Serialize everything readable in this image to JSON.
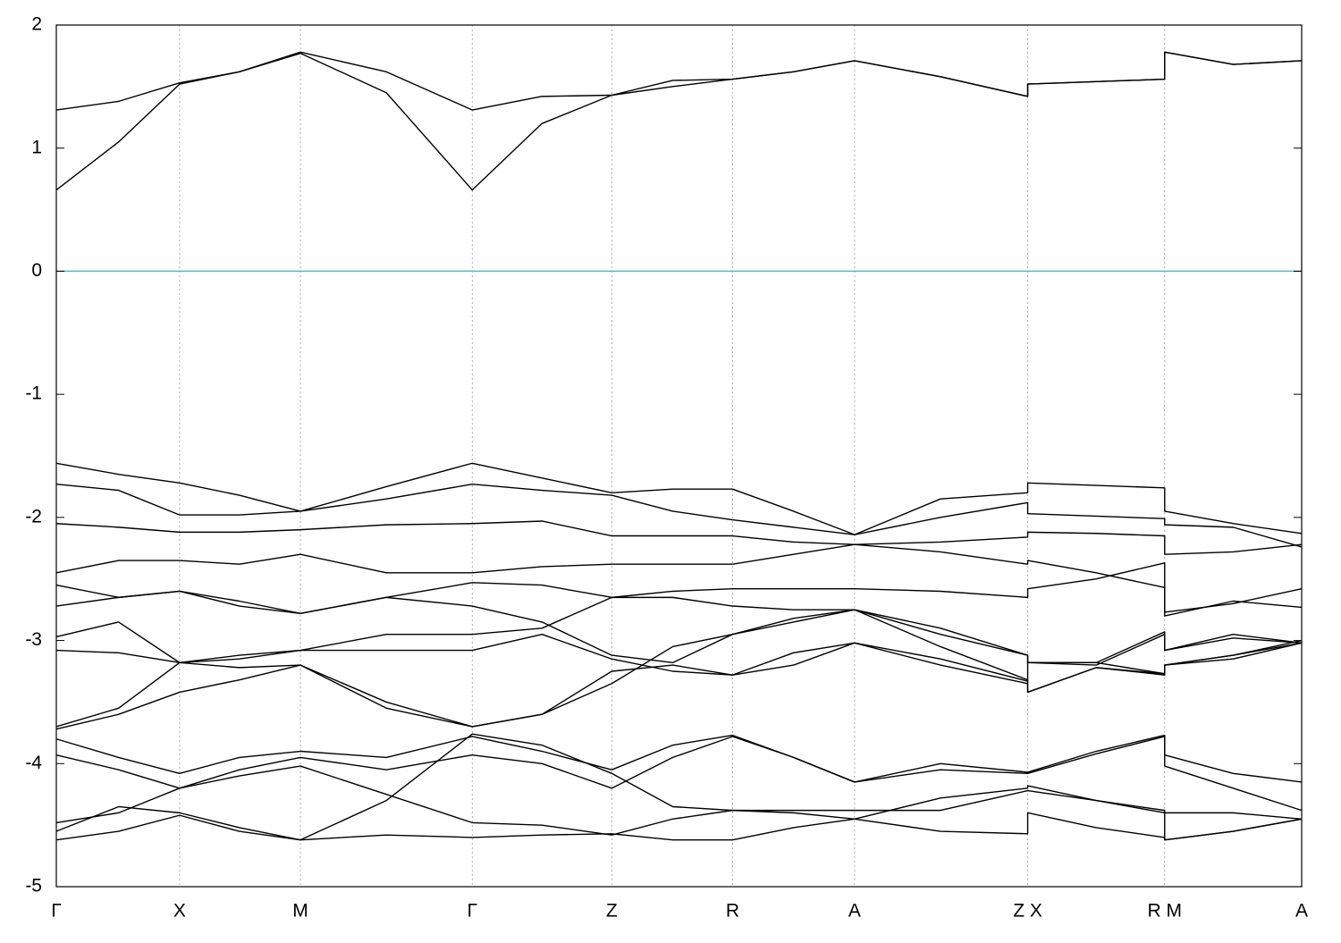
{
  "chart_data": {
    "type": "line",
    "color": "#000000",
    "x": [
      0,
      0.05,
      0.099,
      0.147,
      0.196,
      0.265,
      0.334,
      0.39,
      0.446,
      0.495,
      0.543,
      0.592,
      0.641,
      0.71,
      0.78,
      0.78,
      0.835,
      0.89,
      0.89,
      0.945,
      1.0
    ],
    "xlim": [
      0,
      1.0
    ],
    "xticks": [
      {
        "value": 0,
        "label": "Γ"
      },
      {
        "value": 0.099,
        "label": "X"
      },
      {
        "value": 0.196,
        "label": "M"
      },
      {
        "value": 0.334,
        "label": "Γ"
      },
      {
        "value": 0.446,
        "label": "Z"
      },
      {
        "value": 0.543,
        "label": "R"
      },
      {
        "value": 0.641,
        "label": "A"
      },
      {
        "value": 0.78,
        "label": "Z X"
      },
      {
        "value": 0.89,
        "label": "R M"
      },
      {
        "value": 1.0,
        "label": "A"
      }
    ],
    "ylim": [
      -5,
      2
    ],
    "yticks": [
      -5,
      -4,
      -3,
      -2,
      -1,
      0,
      1,
      2
    ],
    "xgrid": true,
    "reference_line": {
      "value": 0,
      "color": "#5ab4c8"
    },
    "series": [
      {
        "values": [
          0.66,
          1.05,
          1.52,
          1.62,
          1.77,
          1.45,
          0.66,
          1.2,
          1.43,
          1.5,
          1.56,
          1.62,
          1.71,
          1.58,
          1.42,
          1.52,
          1.54,
          1.56,
          1.78,
          1.68,
          1.71
        ]
      },
      {
        "values": [
          1.31,
          1.38,
          1.53,
          1.62,
          1.78,
          1.62,
          1.31,
          1.42,
          1.43,
          1.55,
          1.56,
          1.62,
          1.71,
          1.58,
          1.42,
          1.52,
          1.54,
          1.56,
          1.78,
          1.68,
          1.71
        ]
      },
      {
        "values": [
          -1.56,
          -1.65,
          -1.72,
          -1.82,
          -1.95,
          -1.75,
          -1.56,
          -1.68,
          -1.8,
          -1.77,
          -1.77,
          -1.95,
          -2.14,
          -1.85,
          -1.8,
          -1.72,
          -1.74,
          -1.76,
          -1.95,
          -2.05,
          -2.13
        ]
      },
      {
        "values": [
          -1.73,
          -1.78,
          -1.98,
          -1.98,
          -1.95,
          -1.85,
          -1.73,
          -1.78,
          -1.82,
          -1.95,
          -2.02,
          -2.08,
          -2.14,
          -2.0,
          -1.88,
          -1.97,
          -1.99,
          -2.01,
          -2.06,
          -2.08,
          -2.24
        ]
      },
      {
        "values": [
          -2.05,
          -2.08,
          -2.12,
          -2.12,
          -2.1,
          -2.06,
          -2.05,
          -2.03,
          -2.15,
          -2.15,
          -2.15,
          -2.2,
          -2.22,
          -2.2,
          -2.16,
          -2.12,
          -2.13,
          -2.15,
          -2.3,
          -2.28,
          -2.22
        ]
      },
      {
        "values": [
          -2.45,
          -2.35,
          -2.35,
          -2.38,
          -2.3,
          -2.45,
          -2.45,
          -2.4,
          -2.38,
          -2.38,
          -2.38,
          -2.3,
          -2.22,
          -2.28,
          -2.38,
          -2.35,
          -2.45,
          -2.57,
          -2.77,
          -2.7,
          -2.58
        ]
      },
      {
        "values": [
          -2.55,
          -2.65,
          -2.6,
          -2.68,
          -2.78,
          -2.65,
          -2.53,
          -2.55,
          -2.65,
          -2.6,
          -2.58,
          -2.58,
          -2.58,
          -2.6,
          -2.65,
          -2.58,
          -2.5,
          -2.37,
          -2.8,
          -2.68,
          -2.73
        ]
      },
      {
        "values": [
          -2.72,
          -2.65,
          -2.6,
          -2.72,
          -2.78,
          -2.65,
          -2.72,
          -2.85,
          -3.12,
          -3.18,
          -2.95,
          -2.85,
          -2.75,
          -2.9,
          -3.12,
          -3.18,
          -3.18,
          -2.93,
          -3.08,
          -2.95,
          -3.02
        ]
      },
      {
        "values": [
          -2.97,
          -2.85,
          -3.18,
          -3.15,
          -3.08,
          -2.95,
          -2.95,
          -2.9,
          -2.65,
          -2.65,
          -2.72,
          -2.75,
          -2.75,
          -3.05,
          -3.32,
          -3.42,
          -3.22,
          -3.27,
          -3.2,
          -3.12,
          -3.0
        ]
      },
      {
        "values": [
          -3.08,
          -3.1,
          -3.18,
          -3.12,
          -3.08,
          -3.08,
          -3.08,
          -2.95,
          -3.15,
          -3.25,
          -3.28,
          -3.2,
          -3.02,
          -3.15,
          -3.33,
          -3.18,
          -3.18,
          -3.27,
          -3.2,
          -3.12,
          -3.02
        ]
      },
      {
        "values": [
          -3.7,
          -3.55,
          -3.18,
          -3.22,
          -3.2,
          -3.5,
          -3.7,
          -3.6,
          -3.25,
          -3.2,
          -3.28,
          -3.1,
          -3.02,
          -3.2,
          -3.35,
          -3.42,
          -3.22,
          -3.28,
          -3.2,
          -3.15,
          -3.02
        ]
      },
      {
        "values": [
          -3.72,
          -3.6,
          -3.42,
          -3.32,
          -3.2,
          -3.55,
          -3.7,
          -3.6,
          -3.35,
          -3.05,
          -2.95,
          -2.82,
          -2.75,
          -2.95,
          -3.12,
          -3.18,
          -3.2,
          -2.95,
          -3.08,
          -2.98,
          -3.02
        ]
      },
      {
        "values": [
          -3.8,
          -3.95,
          -4.08,
          -3.95,
          -3.9,
          -3.95,
          -3.78,
          -3.9,
          -4.05,
          -3.85,
          -3.77,
          -3.95,
          -4.15,
          -4.05,
          -4.08,
          -4.07,
          -3.9,
          -3.77,
          -3.93,
          -4.08,
          -4.15
        ]
      },
      {
        "values": [
          -3.93,
          -4.05,
          -4.2,
          -4.05,
          -3.95,
          -4.05,
          -3.93,
          -4.0,
          -4.2,
          -3.95,
          -3.78,
          -3.95,
          -4.15,
          -4.0,
          -4.07,
          -4.08,
          -3.92,
          -3.78,
          -4.02,
          -4.2,
          -4.38
        ]
      },
      {
        "values": [
          -4.48,
          -4.4,
          -4.2,
          -4.1,
          -4.02,
          -4.25,
          -4.48,
          -4.5,
          -4.58,
          -4.45,
          -4.38,
          -4.4,
          -4.45,
          -4.28,
          -4.2,
          -4.18,
          -4.3,
          -4.38,
          -4.62,
          -4.55,
          -4.45
        ]
      },
      {
        "values": [
          -4.55,
          -4.35,
          -4.4,
          -4.52,
          -4.62,
          -4.58,
          -4.6,
          -4.58,
          -4.57,
          -4.62,
          -4.62,
          -4.52,
          -4.45,
          -4.55,
          -4.57,
          -4.4,
          -4.52,
          -4.6,
          -4.62,
          -4.55,
          -4.45
        ]
      },
      {
        "values": [
          -4.62,
          -4.55,
          -4.42,
          -4.55,
          -4.62,
          -4.3,
          -3.76,
          -3.85,
          -4.08,
          -4.35,
          -4.38,
          -4.38,
          -4.38,
          -4.38,
          -4.22,
          -4.22,
          -4.3,
          -4.4,
          -4.4,
          -4.4,
          -4.45
        ]
      }
    ]
  }
}
